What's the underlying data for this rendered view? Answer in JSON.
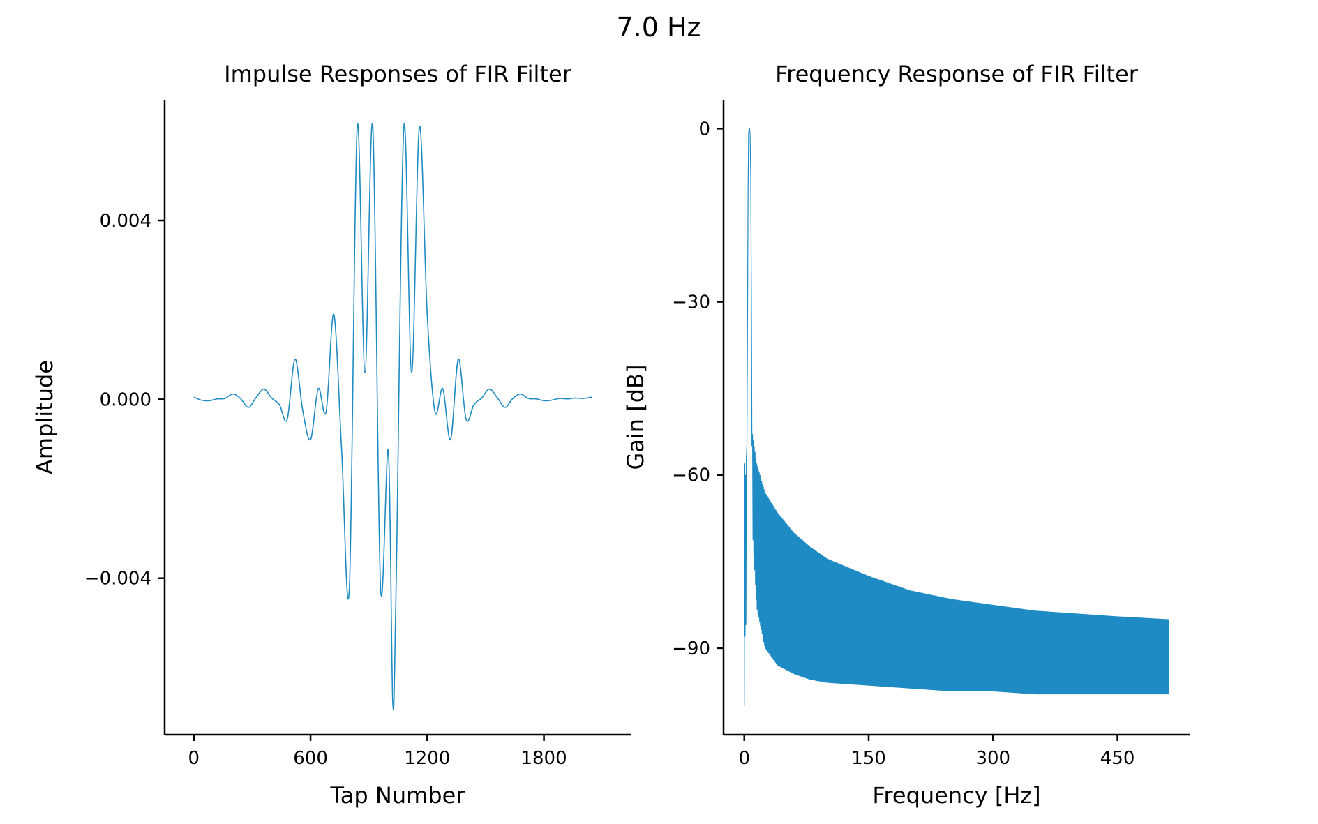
{
  "suptitle": "7.0 Hz",
  "chart_data": [
    {
      "type": "line",
      "title": "Impulse Responses of FIR Filter",
      "xlabel": "Tap Number",
      "ylabel": "Amplitude",
      "xlim": [
        -150,
        2250
      ],
      "ylim": [
        -0.0075,
        0.0067
      ],
      "xticks": [
        0,
        600,
        1200,
        1800
      ],
      "xtick_labels": [
        "0",
        "600",
        "1200",
        "1800"
      ],
      "yticks": [
        -0.004,
        0.0,
        0.004
      ],
      "ytick_labels": [
        "−0.004",
        "0.000",
        "0.004"
      ],
      "line_color": "#1f8bc4",
      "series": [
        {
          "x": [
            0,
            40,
            80,
            120,
            160,
            200,
            240,
            280,
            320,
            360,
            400,
            440,
            480,
            520,
            560,
            600,
            640,
            680,
            720,
            760,
            800,
            840,
            880,
            920,
            960,
            1000,
            1023,
            1040,
            1080,
            1120,
            1160,
            1200,
            1240,
            1280,
            1320,
            1360,
            1400,
            1440,
            1480,
            1520,
            1560,
            1600,
            1640,
            1680,
            1720,
            1760,
            1800,
            1840,
            1880,
            1920,
            1960,
            2000,
            2047
          ],
          "y": [
            5e-05,
            -2e-05,
            -3e-05,
            1e-05,
            2e-05,
            0.00012,
            2e-05,
            -0.00018,
            4e-05,
            0.00023,
            3e-05,
            -0.00012,
            -0.00045,
            0.0009,
            -0.00025,
            -0.0009,
            0.00024,
            -0.00028,
            0.0019,
            -0.00115,
            -0.0042,
            0.0061,
            0.0006,
            0.0061,
            -0.0042,
            -0.00115,
            -0.0068,
            -0.0042,
            0.0061,
            0.0006,
            0.0061,
            0.0019,
            -0.00028,
            0.00024,
            -0.0009,
            0.0009,
            -0.00045,
            -0.00012,
            3e-05,
            0.00023,
            4e-05,
            -0.00018,
            2e-05,
            0.00012,
            2e-05,
            1e-05,
            -3e-05,
            -2e-05,
            2e-05,
            1e-05,
            3e-05,
            2e-05,
            5e-05
          ]
        }
      ]
    },
    {
      "type": "line",
      "title": "Frequency Response of FIR Filter",
      "xlabel": "Frequency [Hz]",
      "ylabel": "Gain [dB]",
      "xlim": [
        -25,
        537
      ],
      "ylim": [
        -105,
        5
      ],
      "xticks": [
        0,
        150,
        300,
        450
      ],
      "xtick_labels": [
        "0",
        "150",
        "300",
        "450"
      ],
      "yticks": [
        0,
        -30,
        -60,
        -90
      ],
      "ytick_labels": [
        "0",
        "−30",
        "−60",
        "−90"
      ],
      "line_color": "#1f8bc4",
      "passband_hz": 7.0,
      "nyquist_hz": 512,
      "envelope": {
        "x": [
          10,
          15,
          25,
          40,
          60,
          80,
          100,
          150,
          200,
          250,
          300,
          350,
          400,
          450,
          512
        ],
        "upper_db": [
          -53,
          -58,
          -63,
          -66.5,
          -70,
          -72.5,
          -74.5,
          -77.5,
          -80,
          -81.5,
          -82.5,
          -83.5,
          -84,
          -84.5,
          -85
        ],
        "lower_db": [
          -70,
          -83,
          -90,
          -93,
          -94.5,
          -95.5,
          -96,
          -96.5,
          -97,
          -97.5,
          -97.5,
          -98,
          -98,
          -98,
          -98
        ]
      }
    }
  ]
}
